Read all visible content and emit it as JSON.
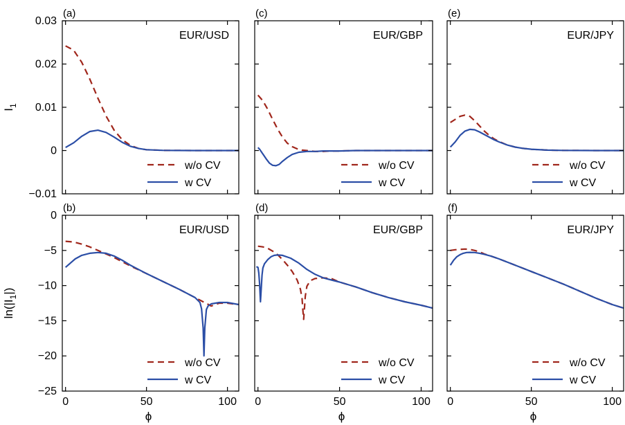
{
  "chart_data": {
    "type": "line",
    "xlabel": "ϕ",
    "ylabels": {
      "top": "I",
      "top_sub": "1",
      "bottom_pre": "ln(|I",
      "bottom_sub": "1",
      "bottom_post": "|)"
    },
    "xlim": [
      -2,
      107
    ],
    "xticks": [
      0,
      50,
      100
    ],
    "top_ylim": [
      -0.01,
      0.03
    ],
    "top_yticks": [
      -0.01,
      0,
      0.01,
      0.02,
      0.03
    ],
    "top_yticklabels": [
      "−0.01",
      "0",
      "0.01",
      "0.02",
      "0.03"
    ],
    "bottom_ylim": [
      -25,
      0
    ],
    "bottom_yticks": [
      -25,
      -20,
      -15,
      -10,
      -5,
      0
    ],
    "bottom_yticklabels": [
      "−25",
      "−20",
      "−15",
      "−10",
      "−5",
      "0"
    ],
    "legend": {
      "placement": "bottom-right",
      "entries": [
        "w/o CV",
        "w CV"
      ]
    },
    "colors": {
      "wo_cv": "#a0261b",
      "w_cv": "#2b4ea6"
    },
    "panels": [
      {
        "id": "a",
        "label": "(a)",
        "pair": "EUR/USD",
        "row": "top",
        "series": [
          {
            "name": "w/o CV",
            "style": "dashed",
            "x": [
              0,
              5,
              10,
              15,
              20,
              25,
              30,
              35,
              40,
              45,
              50,
              60,
              70,
              80,
              90,
              100,
              107
            ],
            "y": [
              0.0242,
              0.0232,
              0.0204,
              0.0165,
              0.0121,
              0.008,
              0.0047,
              0.0025,
              0.0012,
              0.0005,
              0.0002,
              5e-05,
              1e-05,
              0,
              0,
              0,
              0
            ]
          },
          {
            "name": "w CV",
            "style": "solid",
            "x": [
              0,
              5,
              10,
              15,
              20,
              25,
              30,
              35,
              40,
              45,
              50,
              60,
              70,
              80,
              90,
              100,
              107
            ],
            "y": [
              0.0007,
              0.0018,
              0.0033,
              0.0044,
              0.0047,
              0.0042,
              0.0031,
              0.0019,
              0.001,
              0.0005,
              0.0002,
              5e-05,
              1e-05,
              0,
              0,
              0,
              0
            ]
          }
        ]
      },
      {
        "id": "c",
        "label": "(c)",
        "pair": "EUR/GBP",
        "row": "top",
        "series": [
          {
            "name": "w/o CV",
            "style": "dashed",
            "x": [
              0,
              3,
              6,
              9,
              12,
              15,
              18,
              21,
              24,
              27,
              30,
              35,
              40,
              45,
              50,
              60,
              80,
              107
            ],
            "y": [
              0.0128,
              0.0115,
              0.0095,
              0.0072,
              0.005,
              0.0031,
              0.0017,
              0.0009,
              0.0004,
              0.0001,
              0.0,
              -0.0002,
              -0.0002,
              -0.0001,
              -0.0001,
              0,
              0,
              0
            ]
          },
          {
            "name": "w CV",
            "style": "solid",
            "x": [
              0,
              1,
              3,
              5,
              7,
              9,
              11,
              13,
              15,
              18,
              21,
              25,
              30,
              35,
              40,
              45,
              50,
              60,
              80,
              107
            ],
            "y": [
              0.0007,
              0.0003,
              -0.0008,
              -0.0019,
              -0.0029,
              -0.0034,
              -0.0035,
              -0.0032,
              -0.0025,
              -0.0016,
              -0.0009,
              -0.0004,
              -0.0002,
              -0.0002,
              -0.0001,
              -0.0001,
              -0.0001,
              0,
              0,
              0
            ]
          }
        ]
      },
      {
        "id": "e",
        "label": "(e)",
        "pair": "EUR/JPY",
        "row": "top",
        "series": [
          {
            "name": "w/o CV",
            "style": "dashed",
            "x": [
              0,
              3,
              6,
              9,
              12,
              15,
              18,
              21,
              24,
              27,
              30,
              35,
              40,
              45,
              50,
              60,
              70,
              80,
              90,
              107
            ],
            "y": [
              0.0065,
              0.0072,
              0.0079,
              0.0082,
              0.0079,
              0.0069,
              0.0057,
              0.0045,
              0.0035,
              0.0027,
              0.0021,
              0.0013,
              0.0008,
              0.0005,
              0.0003,
              0.0001,
              4e-05,
              1e-05,
              0,
              0
            ]
          },
          {
            "name": "w CV",
            "style": "solid",
            "x": [
              0,
              3,
              6,
              9,
              12,
              15,
              18,
              21,
              24,
              27,
              30,
              35,
              40,
              45,
              50,
              60,
              70,
              80,
              90,
              107
            ],
            "y": [
              0.0008,
              0.002,
              0.0035,
              0.0045,
              0.0049,
              0.0048,
              0.0043,
              0.0037,
              0.0031,
              0.0025,
              0.002,
              0.0013,
              0.0008,
              0.0005,
              0.0003,
              0.0001,
              4e-05,
              1e-05,
              0,
              0
            ]
          }
        ]
      },
      {
        "id": "b",
        "label": "(b)",
        "pair": "EUR/USD",
        "row": "bottom",
        "series": [
          {
            "name": "w/o CV",
            "style": "dashed",
            "x": [
              0,
              5,
              10,
              15,
              20,
              25,
              30,
              35,
              40,
              50,
              60,
              70,
              80,
              85,
              90,
              95,
              100,
              107
            ],
            "y": [
              -3.7,
              -3.8,
              -4.1,
              -4.5,
              -5.0,
              -5.5,
              -6.0,
              -6.6,
              -7.2,
              -8.3,
              -9.4,
              -10.5,
              -11.7,
              -12.3,
              -12.9,
              -12.5,
              -12.5,
              -12.7
            ]
          },
          {
            "name": "w CV",
            "style": "solid",
            "x": [
              0,
              3,
              6,
              10,
              15,
              20,
              25,
              30,
              35,
              40,
              50,
              60,
              70,
              80,
              83,
              84,
              85,
              85.5,
              86,
              87,
              88,
              90,
              95,
              100,
              107
            ],
            "y": [
              -7.4,
              -6.8,
              -6.2,
              -5.7,
              -5.4,
              -5.3,
              -5.4,
              -5.8,
              -6.4,
              -7.1,
              -8.3,
              -9.4,
              -10.5,
              -11.7,
              -12.4,
              -13.3,
              -16,
              -20,
              -16,
              -13.4,
              -12.9,
              -12.6,
              -12.4,
              -12.4,
              -12.7
            ]
          }
        ]
      },
      {
        "id": "d",
        "label": "(d)",
        "pair": "EUR/GBP",
        "row": "bottom",
        "series": [
          {
            "name": "w/o CV",
            "style": "dashed",
            "x": [
              0,
              3,
              6,
              9,
              12,
              15,
              18,
              21,
              24,
              26,
              27,
              27.5,
              28,
              28.5,
              29,
              30,
              32,
              35,
              40,
              45,
              50,
              60,
              70,
              80,
              90,
              100,
              107
            ],
            "y": [
              -4.4,
              -4.5,
              -4.7,
              -5.1,
              -5.6,
              -6.3,
              -7.1,
              -8.0,
              -9.2,
              -10.5,
              -11.8,
              -13.5,
              -14.8,
              -13.2,
              -11.5,
              -10.1,
              -9.3,
              -9.0,
              -8.9,
              -9.0,
              -9.5,
              -10.2,
              -11.0,
              -11.7,
              -12.3,
              -12.8,
              -13.2
            ]
          },
          {
            "name": "w CV",
            "style": "solid",
            "x": [
              -1,
              0,
              0.5,
              1,
              1.5,
              2,
              2.5,
              3,
              4,
              6,
              8,
              10,
              12,
              15,
              20,
              25,
              30,
              35,
              40,
              45,
              50,
              60,
              70,
              80,
              90,
              100,
              107
            ],
            "y": [
              -7.3,
              -7.4,
              -8.2,
              -9.8,
              -12.3,
              -10.5,
              -8.5,
              -7.5,
              -6.9,
              -6.3,
              -5.9,
              -5.7,
              -5.65,
              -5.7,
              -6.1,
              -6.8,
              -7.7,
              -8.4,
              -8.9,
              -9.2,
              -9.5,
              -10.2,
              -11.0,
              -11.7,
              -12.3,
              -12.8,
              -13.2
            ]
          }
        ]
      },
      {
        "id": "f",
        "label": "(f)",
        "pair": "EUR/JPY",
        "row": "bottom",
        "series": [
          {
            "name": "w/o CV",
            "style": "dashed",
            "x": [
              0,
              3,
              6,
              9,
              12,
              15,
              18,
              21,
              25,
              30,
              40,
              50,
              60,
              70,
              80,
              90,
              100,
              107
            ],
            "y": [
              -5.0,
              -4.9,
              -4.85,
              -4.8,
              -4.85,
              -5.0,
              -5.2,
              -5.5,
              -5.8,
              -6.2,
              -7.1,
              -8.0,
              -8.9,
              -9.8,
              -10.8,
              -11.8,
              -12.7,
              -13.2
            ]
          },
          {
            "name": "w CV",
            "style": "solid",
            "x": [
              0,
              2,
              4,
              6,
              8,
              10,
              12,
              15,
              18,
              21,
              25,
              30,
              40,
              50,
              60,
              70,
              80,
              90,
              100,
              107
            ],
            "y": [
              -7.1,
              -6.4,
              -5.9,
              -5.6,
              -5.4,
              -5.3,
              -5.28,
              -5.3,
              -5.4,
              -5.55,
              -5.8,
              -6.2,
              -7.1,
              -8.0,
              -8.9,
              -9.8,
              -10.8,
              -11.8,
              -12.7,
              -13.2
            ]
          }
        ]
      }
    ]
  }
}
